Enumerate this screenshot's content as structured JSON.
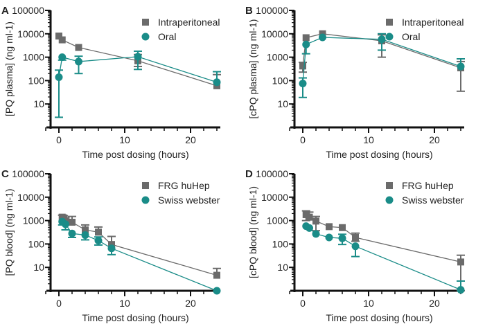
{
  "colors": {
    "series_a": "#6b6b6b",
    "series_b": "#1a8c88",
    "axis": "#111111"
  },
  "chart_data": [
    {
      "panel": "A",
      "type": "scatter-line",
      "xlabel": "Time post dosing (hours)",
      "ylabel": "[PQ plasma] (ng ml-1)",
      "yscale": "log",
      "ylim": [
        1,
        100000
      ],
      "xlim": [
        -2,
        24.5
      ],
      "xticks": [
        0,
        10,
        20
      ],
      "yticks": [
        10,
        100,
        1000,
        10000,
        100000
      ],
      "yticklabels": [
        "10",
        "100",
        "1000",
        "10000",
        "100000"
      ],
      "legend": "top-right",
      "grid": false,
      "series": [
        {
          "name": "Intraperitoneal",
          "marker": "square",
          "x": [
            0,
            0.5,
            3,
            12,
            24
          ],
          "y": [
            8000,
            5500,
            2600,
            700,
            60
          ],
          "err": [
            [
              null,
              null
            ],
            [
              null,
              null
            ],
            [
              null,
              null
            ],
            [
              400,
              1300
            ],
            [
              null,
              180
            ]
          ]
        },
        {
          "name": "Oral",
          "marker": "circle",
          "x": [
            0,
            0.5,
            3,
            12,
            24
          ],
          "y": [
            140,
            1000,
            650,
            1050,
            85
          ],
          "err": [
            [
              2.7,
              280
            ],
            [
              750,
              null
            ],
            [
              200,
              1100
            ],
            [
              300,
              1800
            ],
            [
              null,
              240
            ]
          ]
        }
      ]
    },
    {
      "panel": "B",
      "type": "scatter-line",
      "xlabel": "Time post dosing (hours)",
      "ylabel": "[cPQ plasma] (ng ml-1)",
      "yscale": "log",
      "ylim": [
        1,
        100000
      ],
      "xlim": [
        -2,
        24.5
      ],
      "xticks": [
        0,
        10,
        20
      ],
      "yticks": [
        10,
        100,
        1000,
        10000,
        100000
      ],
      "yticklabels": [
        "10",
        "100",
        "1000",
        "10000",
        "100000"
      ],
      "legend": "top-right",
      "grid": false,
      "series": [
        {
          "name": "Intraperitoneal",
          "marker": "square",
          "x": [
            0,
            0.5,
            3,
            12,
            24
          ],
          "y": [
            420,
            6800,
            10000,
            5000,
            350
          ],
          "err": [
            [
              230,
              600
            ],
            [
              null,
              null
            ],
            [
              null,
              null
            ],
            [
              1000,
              9000
            ],
            [
              35,
              650
            ]
          ]
        },
        {
          "name": "Oral",
          "marker": "circle",
          "x": [
            0,
            0.5,
            3,
            12,
            24
          ],
          "y": [
            75,
            3500,
            7000,
            5800,
            400
          ],
          "err": [
            [
              19,
              130
            ],
            [
              1400,
              null
            ],
            [
              null,
              null
            ],
            [
              2000,
              10000
            ],
            [
              null,
              850
            ]
          ]
        }
      ]
    },
    {
      "panel": "C",
      "type": "scatter-line",
      "xlabel": "Time post dosing (hours)",
      "ylabel": "[PQ blood] (ng ml-1)",
      "yscale": "log",
      "ylim": [
        1,
        100000
      ],
      "xlim": [
        -2,
        24.5
      ],
      "xticks": [
        0,
        10,
        20
      ],
      "yticks": [
        10,
        100,
        1000,
        10000,
        100000
      ],
      "yticklabels": [
        "10",
        "100",
        "1000",
        "10000",
        "100000"
      ],
      "legend": "top-right",
      "grid": false,
      "series": [
        {
          "name": "FRG huHep",
          "marker": "square",
          "x": [
            0.5,
            0.75,
            1,
            2,
            4,
            6,
            8,
            24
          ],
          "y": [
            1400,
            1300,
            1000,
            850,
            400,
            320,
            95,
            4.6
          ],
          "err": [
            [
              null,
              1700
            ],
            [
              null,
              1600
            ],
            [
              null,
              1300
            ],
            [
              null,
              1500
            ],
            [
              null,
              650
            ],
            [
              null,
              530
            ],
            [
              null,
              210
            ],
            [
              null,
              9
            ]
          ]
        },
        {
          "name": "Swiss webster",
          "marker": "circle",
          "x": [
            0.5,
            1,
            2,
            4,
            6,
            8,
            24
          ],
          "y": [
            900,
            700,
            280,
            240,
            140,
            65,
            1
          ],
          "err": [
            [
              650,
              null
            ],
            [
              400,
              null
            ],
            [
              190,
              null
            ],
            [
              150,
              null
            ],
            [
              90,
              200
            ],
            [
              35,
              null
            ],
            [
              null,
              null
            ]
          ]
        }
      ]
    },
    {
      "panel": "D",
      "type": "scatter-line",
      "xlabel": "Time post dosing (hours)",
      "ylabel": "[cPQ blood] (ng ml-1)",
      "yscale": "log",
      "ylim": [
        1,
        100000
      ],
      "xlim": [
        -2,
        24.5
      ],
      "xticks": [
        0,
        10,
        20
      ],
      "yticks": [
        10,
        100,
        1000,
        10000,
        100000
      ],
      "yticklabels": [
        "10",
        "100",
        "1000",
        "10000",
        "100000"
      ],
      "legend": "top-right",
      "grid": false,
      "series": [
        {
          "name": "FRG huHep",
          "marker": "square",
          "x": [
            0.5,
            1,
            2,
            4,
            6,
            8,
            24
          ],
          "y": [
            1800,
            1400,
            950,
            550,
            500,
            190,
            17
          ],
          "err": [
            [
              1000,
              2600
            ],
            [
              null,
              2300
            ],
            [
              370,
              1500
            ],
            [
              null,
              null
            ],
            [
              null,
              null
            ],
            [
              130,
              290
            ],
            [
              1,
              33
            ]
          ]
        },
        {
          "name": "Swiss webster",
          "marker": "circle",
          "x": [
            0.5,
            1,
            2,
            4,
            6,
            8,
            24
          ],
          "y": [
            580,
            480,
            270,
            190,
            175,
            80,
            1.1
          ],
          "err": [
            [
              null,
              null
            ],
            [
              null,
              null
            ],
            [
              null,
              null
            ],
            [
              null,
              null
            ],
            [
              95,
              260
            ],
            [
              29,
              null
            ],
            [
              null,
              2.6
            ]
          ]
        }
      ]
    }
  ]
}
